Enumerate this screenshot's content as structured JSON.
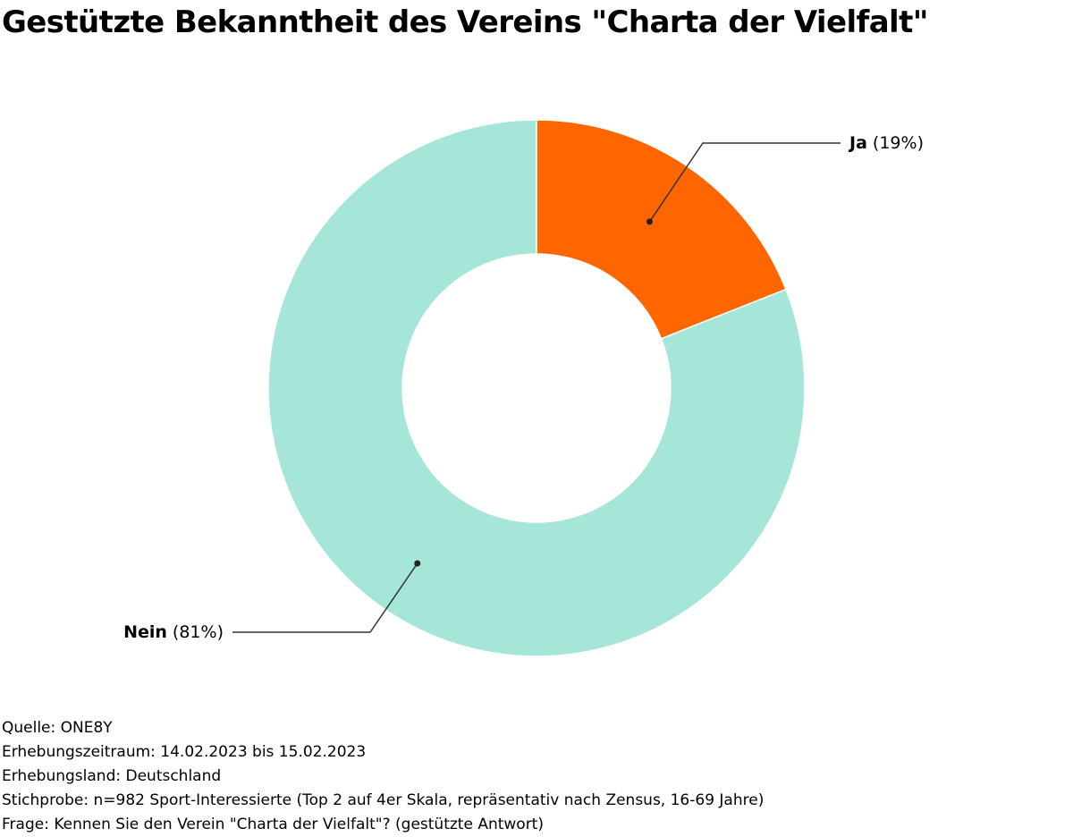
{
  "chart_data": {
    "type": "pie",
    "title": "Gestützte Bekanntheit des Vereins \"Charta der Vielfalt\"",
    "donut": true,
    "slices": [
      {
        "name": "Ja",
        "value": 19,
        "label_suffix": "(19%)",
        "color": "#ff6600"
      },
      {
        "name": "Nein",
        "value": 81,
        "label_suffix": "(81%)",
        "color": "#a6e6d8"
      }
    ]
  },
  "footer": {
    "source": "Quelle: ONE8Y",
    "period": "Erhebungszeitraum: 14.02.2023 bis 15.02.2023",
    "country": "Erhebungsland: Deutschland",
    "sample": "Stichprobe: n=982 Sport-Interessierte (Top 2 auf 4er Skala, repräsentativ nach Zensus, 16-69 Jahre)",
    "question": "Frage: Kennen Sie den Verein \"Charta der Vielfalt\"? (gestützte Antwort)"
  }
}
